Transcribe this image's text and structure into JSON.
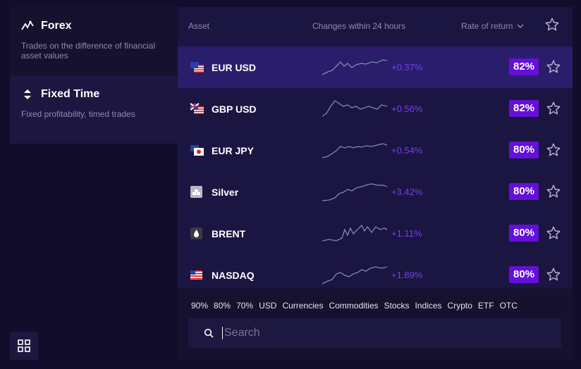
{
  "sidebar": {
    "modes": [
      {
        "title": "Forex",
        "description": "Trades on the difference of financial asset values"
      },
      {
        "title": "Fixed Time",
        "description": "Fixed profitability, timed trades"
      }
    ]
  },
  "table": {
    "headers": {
      "asset": "Asset",
      "change": "Changes within 24 hours",
      "return": "Rate of return"
    },
    "rows": [
      {
        "name": "EUR USD",
        "change": "+0.37%",
        "rate": "82%"
      },
      {
        "name": "GBP USD",
        "change": "+0.56%",
        "rate": "82%"
      },
      {
        "name": "EUR JPY",
        "change": "+0.54%",
        "rate": "80%"
      },
      {
        "name": "Silver",
        "change": "+3.42%",
        "rate": "80%"
      },
      {
        "name": "BRENT",
        "change": "+1.11%",
        "rate": "80%"
      },
      {
        "name": "NASDAQ",
        "change": "+1.89%",
        "rate": "80%"
      }
    ]
  },
  "filters": {
    "chips": [
      "90%",
      "80%",
      "70%",
      "USD",
      "Currencies",
      "Commodities",
      "Stocks",
      "Indices",
      "Crypto",
      "ETF",
      "OTC"
    ]
  },
  "search": {
    "placeholder": "Search"
  },
  "colors": {
    "accent": "#6410d8",
    "change_text": "#7b3cf0",
    "selected_row": "#2a1d6b"
  }
}
